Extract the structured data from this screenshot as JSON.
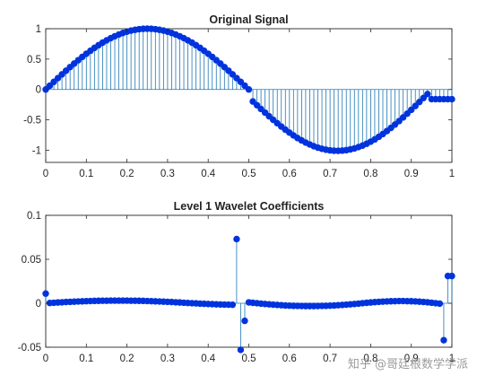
{
  "watermark": "知乎 @哥廷根数学学派",
  "chart_data": [
    {
      "type": "stem",
      "title": "Original Signal",
      "xlabel": "",
      "ylabel": "",
      "xlim": [
        0,
        1
      ],
      "ylim": [
        -1.2,
        1
      ],
      "x_ticks": [
        0,
        0.1,
        0.2,
        0.3,
        0.4,
        0.5,
        0.6,
        0.7,
        0.8,
        0.9,
        1
      ],
      "x_tick_labels": [
        "0",
        "0.1",
        "0.2",
        "0.3",
        "0.4",
        "0.5",
        "0.6",
        "0.7",
        "0.8",
        "0.9",
        "1"
      ],
      "y_ticks": [
        -1,
        -0.5,
        0,
        0.5,
        1
      ],
      "y_tick_labels": [
        "-1",
        "-0.5",
        "0",
        "0.5",
        "1"
      ],
      "line_color": "#1f77b4",
      "marker_color": "#0033dd",
      "grid": false,
      "series": [
        {
          "x": [
            0,
            0.01,
            0.02,
            0.03,
            0.04,
            0.05,
            0.06,
            0.07,
            0.08,
            0.09,
            0.1,
            0.11,
            0.12,
            0.13,
            0.14,
            0.15,
            0.16,
            0.17,
            0.18,
            0.19,
            0.2,
            0.21,
            0.22,
            0.23,
            0.24,
            0.25,
            0.26,
            0.27,
            0.28,
            0.29,
            0.3,
            0.31,
            0.32,
            0.33,
            0.34,
            0.35,
            0.36,
            0.37,
            0.38,
            0.39,
            0.4,
            0.41,
            0.42,
            0.43,
            0.44,
            0.45,
            0.46,
            0.47,
            0.48,
            0.49,
            0.5,
            0.51,
            0.52,
            0.53,
            0.54,
            0.55,
            0.56,
            0.57,
            0.58,
            0.59,
            0.6,
            0.61,
            0.62,
            0.63,
            0.64,
            0.65,
            0.66,
            0.67,
            0.68,
            0.69,
            0.7,
            0.71,
            0.72,
            0.73,
            0.74,
            0.75,
            0.76,
            0.77,
            0.78,
            0.79,
            0.8,
            0.81,
            0.82,
            0.83,
            0.84,
            0.85,
            0.86,
            0.87,
            0.88,
            0.89,
            0.9,
            0.91,
            0.92,
            0.93,
            0.94,
            0.95,
            0.96,
            0.97,
            0.98,
            0.99,
            1
          ],
          "y": [
            0,
            0.063,
            0.125,
            0.187,
            0.249,
            0.309,
            0.368,
            0.426,
            0.482,
            0.536,
            0.588,
            0.637,
            0.685,
            0.729,
            0.771,
            0.809,
            0.844,
            0.876,
            0.905,
            0.93,
            0.951,
            0.969,
            0.982,
            0.992,
            0.998,
            1.0,
            0.998,
            0.992,
            0.982,
            0.969,
            0.951,
            0.93,
            0.905,
            0.876,
            0.844,
            0.809,
            0.771,
            0.729,
            0.685,
            0.637,
            0.588,
            0.536,
            0.482,
            0.426,
            0.368,
            0.309,
            0.249,
            0.187,
            0.125,
            0.063,
            0,
            -0.198,
            -0.259,
            -0.321,
            -0.381,
            -0.441,
            -0.499,
            -0.555,
            -0.61,
            -0.661,
            -0.71,
            -0.756,
            -0.799,
            -0.838,
            -0.874,
            -0.905,
            -0.933,
            -0.957,
            -0.976,
            -0.991,
            -1.002,
            -1.008,
            -1.01,
            -1.006,
            -0.999,
            -0.986,
            -0.97,
            -0.948,
            -0.923,
            -0.893,
            -0.859,
            -0.821,
            -0.779,
            -0.733,
            -0.684,
            -0.632,
            -0.577,
            -0.52,
            -0.46,
            -0.398,
            -0.335,
            -0.271,
            -0.206,
            -0.14,
            -0.075,
            -0.16,
            -0.16,
            -0.16,
            -0.16,
            -0.16,
            -0.16
          ]
        }
      ]
    },
    {
      "type": "stem",
      "title": "Level 1 Wavelet Coefficients",
      "xlabel": "",
      "ylabel": "",
      "xlim": [
        0,
        1
      ],
      "ylim": [
        -0.05,
        0.1
      ],
      "x_ticks": [
        0,
        0.1,
        0.2,
        0.3,
        0.4,
        0.5,
        0.6,
        0.7,
        0.8,
        0.9,
        1
      ],
      "x_tick_labels": [
        "0",
        "0.1",
        "0.2",
        "0.3",
        "0.4",
        "0.5",
        "0.6",
        "0.7",
        "0.8",
        "0.9",
        "1"
      ],
      "y_ticks": [
        -0.05,
        0,
        0.05,
        0.1
      ],
      "y_tick_labels": [
        "-0.05",
        "0",
        "0.05",
        "0.1"
      ],
      "line_color": "#1f77b4",
      "marker_color": "#0033dd",
      "grid": false,
      "series": [
        {
          "x": [
            0,
            0.01,
            0.02,
            0.03,
            0.04,
            0.05,
            0.06,
            0.07,
            0.08,
            0.09,
            0.1,
            0.11,
            0.12,
            0.13,
            0.14,
            0.15,
            0.16,
            0.17,
            0.18,
            0.19,
            0.2,
            0.21,
            0.22,
            0.23,
            0.24,
            0.25,
            0.26,
            0.27,
            0.28,
            0.29,
            0.3,
            0.31,
            0.32,
            0.33,
            0.34,
            0.35,
            0.36,
            0.37,
            0.38,
            0.39,
            0.4,
            0.41,
            0.42,
            0.43,
            0.44,
            0.45,
            0.46,
            0.47,
            0.48,
            0.49,
            0.5,
            0.51,
            0.52,
            0.53,
            0.54,
            0.55,
            0.56,
            0.57,
            0.58,
            0.59,
            0.6,
            0.61,
            0.62,
            0.63,
            0.64,
            0.65,
            0.66,
            0.67,
            0.68,
            0.69,
            0.7,
            0.71,
            0.72,
            0.73,
            0.74,
            0.75,
            0.76,
            0.77,
            0.78,
            0.79,
            0.8,
            0.81,
            0.82,
            0.83,
            0.84,
            0.85,
            0.86,
            0.87,
            0.88,
            0.89,
            0.9,
            0.91,
            0.92,
            0.93,
            0.94,
            0.95,
            0.96,
            0.97,
            0.98,
            0.99,
            1
          ],
          "y": [
            0.011,
            0.0003,
            0.0006,
            0.0009,
            0.0011,
            0.0014,
            0.0016,
            0.0018,
            0.002,
            0.0022,
            0.0024,
            0.0025,
            0.0027,
            0.0028,
            0.0029,
            0.0029,
            0.003,
            0.003,
            0.003,
            0.003,
            0.003,
            0.0029,
            0.0029,
            0.0028,
            0.0027,
            0.0025,
            0.0024,
            0.0022,
            0.002,
            0.0018,
            0.0016,
            0.0014,
            0.0011,
            0.0009,
            0.0006,
            0.0003,
            0.0001,
            -0.0001,
            -0.0004,
            -0.0006,
            -0.0008,
            -0.001,
            -0.0012,
            -0.0014,
            -0.0015,
            -0.0016,
            -0.0017,
            0.073,
            -0.053,
            -0.02,
            0.001,
            0.0005,
            0.0001,
            -0.0004,
            -0.0008,
            -0.0012,
            -0.0016,
            -0.0019,
            -0.0022,
            -0.0025,
            -0.0027,
            -0.0029,
            -0.003,
            -0.0031,
            -0.0032,
            -0.0032,
            -0.0032,
            -0.0031,
            -0.003,
            -0.0029,
            -0.0027,
            -0.0025,
            -0.0022,
            -0.0019,
            -0.0016,
            -0.0012,
            -0.0008,
            -0.0004,
            0.0001,
            0.0005,
            0.0009,
            0.0013,
            0.0016,
            0.0019,
            0.0021,
            0.0023,
            0.0024,
            0.0025,
            0.0025,
            0.0024,
            0.0023,
            0.0021,
            0.0018,
            0.0015,
            0.0011,
            0.0006,
            0.0001,
            -0.0004,
            -0.042,
            0.031,
            0.031
          ]
        }
      ]
    }
  ]
}
